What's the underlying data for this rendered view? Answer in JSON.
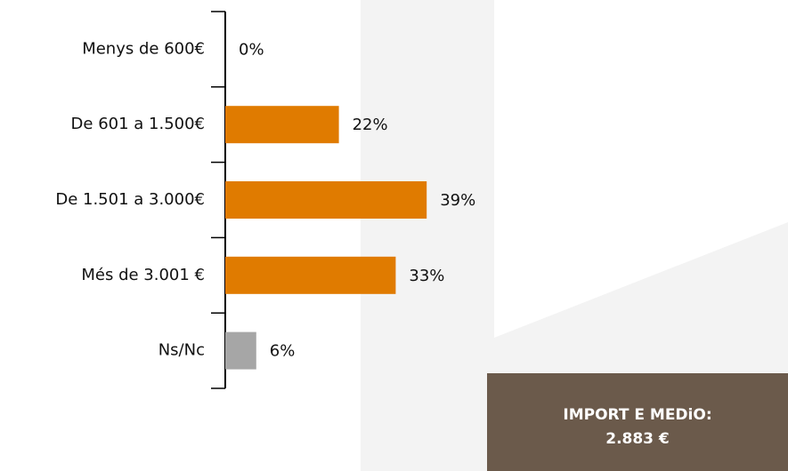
{
  "chart_data": {
    "type": "hbar",
    "categories": [
      "Menys de 600€",
      "De 601 a 1.500€",
      "De 1.501 a 3.000€",
      "Més de 3.001 €",
      "Ns/Nc"
    ],
    "values": [
      0,
      22,
      39,
      33,
      6
    ],
    "value_labels": [
      "0%",
      "22%",
      "39%",
      "33%",
      "6%"
    ],
    "colors": [
      "#e07b00",
      "#e07b00",
      "#e07b00",
      "#e07b00",
      "#a6a6a6"
    ],
    "annotation": [
      "IMPORT E MEDiO:",
      "2.883 €"
    ]
  }
}
